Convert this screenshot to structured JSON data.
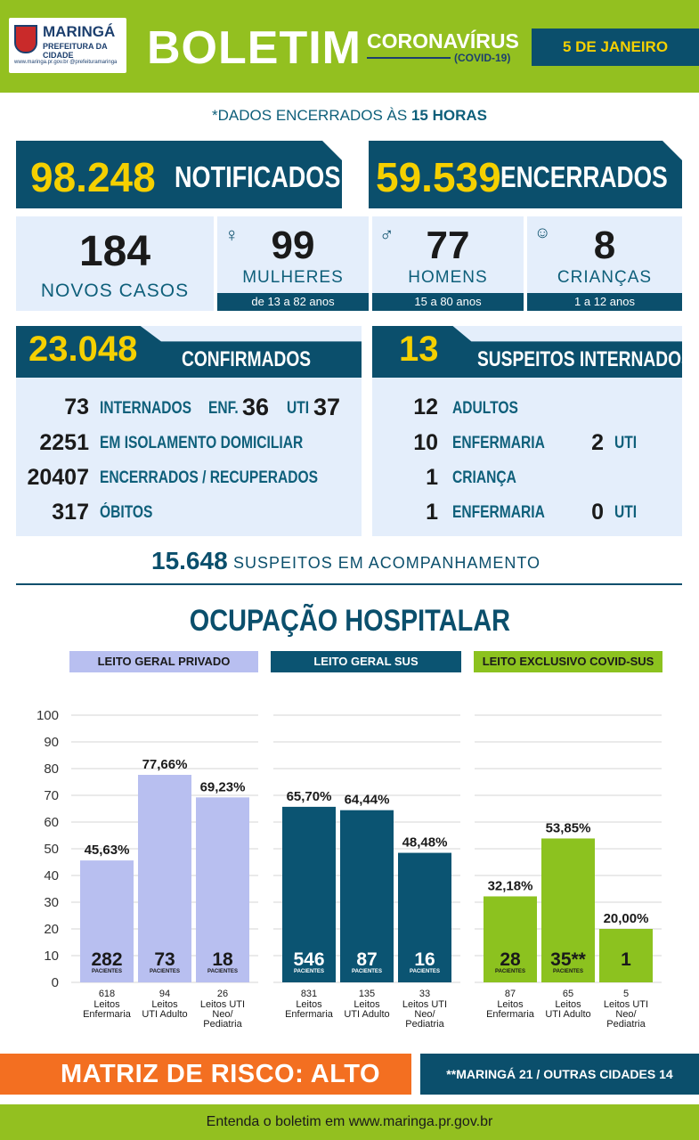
{
  "header": {
    "logo_name": "MARINGÁ",
    "logo_sub": "PREFEITURA DA CIDADE",
    "logo_url": "www.maringa.pr.gov.br  @prefeituramaringa",
    "title": "BOLETIM",
    "subtitle": "CORONAVÍRUS",
    "subtitle_tag": "(COVID-19)",
    "date": "5 DE JANEIRO"
  },
  "dados_encerrados": {
    "prefix": "*DADOS ENCERRADOS ÀS",
    "hour": "15 HORAS"
  },
  "totals": {
    "notificados_value": "98.248",
    "notificados_label": "NOTIFICADOS",
    "encerrados_value": "59.539",
    "encerrados_label": "ENCERRADOS"
  },
  "new_cases": {
    "total_value": "184",
    "total_label": "NOVOS CASOS",
    "women_value": "99",
    "women_label": "MULHERES",
    "women_age": "de 13 a 82 anos",
    "men_value": "77",
    "men_label": "HOMENS",
    "men_age": "15 a 80 anos",
    "children_value": "8",
    "children_label": "CRIANÇAS",
    "children_age": "1 a 12 anos"
  },
  "confirmed": {
    "value": "23.048",
    "label": "CONFIRMADOS",
    "internados_value": "73",
    "internados_label": "INTERNADOS",
    "enf_label": "ENF.",
    "enf_value": "36",
    "uti_label": "UTI",
    "uti_value": "37",
    "isolamento_value": "2251",
    "isolamento_label": "EM ISOLAMENTO DOMICILIAR",
    "recuperados_value": "20407",
    "recuperados_label": "ENCERRADOS / RECUPERADOS",
    "obitos_value": "317",
    "obitos_label": "ÓBITOS"
  },
  "suspects": {
    "value": "13",
    "label": "SUSPEITOS INTERNADOS",
    "adultos_value": "12",
    "adultos_label": "ADULTOS",
    "adult_enf_value": "10",
    "adult_enf_label": "ENFERMARIA",
    "adult_uti_value": "2",
    "adult_uti_label": "UTI",
    "crianca_value": "1",
    "crianca_label": "CRIANÇA",
    "child_enf_value": "1",
    "child_enf_label": "ENFERMARIA",
    "child_uti_value": "0",
    "child_uti_label": "UTI"
  },
  "acompanhamento": {
    "value": "15.648",
    "label": "SUSPEITOS EM ACOMPANHAMENTO"
  },
  "ocupacao": {
    "title": "OCUPAÇÃO HOSPITALAR",
    "groups": [
      "LEITO GERAL PRIVADO",
      "LEITO GERAL SUS",
      "LEITO EXCLUSIVO COVID-SUS"
    ],
    "pacientes_label": "PACIENTES"
  },
  "chart_data": {
    "type": "bar",
    "title": "OCUPAÇÃO HOSPITALAR",
    "ylim": [
      0,
      100
    ],
    "yticks": [
      0,
      10,
      20,
      30,
      40,
      50,
      60,
      70,
      80,
      90,
      100
    ],
    "grid": true,
    "groups": [
      {
        "name": "LEITO GERAL PRIVADO",
        "color": "#b8bff0",
        "text_color": "#1a1a1a",
        "bars": [
          {
            "value": 45.63,
            "pct_label": "45,63%",
            "patients": "282",
            "beds": "618",
            "category": [
              "Leitos",
              "Enfermaria"
            ]
          },
          {
            "value": 77.66,
            "pct_label": "77,66%",
            "patients": "73",
            "beds": "94",
            "category": [
              "Leitos",
              "UTI Adulto"
            ]
          },
          {
            "value": 69.23,
            "pct_label": "69,23%",
            "patients": "18",
            "beds": "26",
            "category": [
              "Leitos UTI",
              "Neo/",
              "Pediatria"
            ]
          }
        ]
      },
      {
        "name": "LEITO GERAL SUS",
        "color": "#0b5472",
        "text_color": "#ffffff",
        "bars": [
          {
            "value": 65.7,
            "pct_label": "65,70%",
            "patients": "546",
            "beds": "831",
            "category": [
              "Leitos",
              "Enfermaria"
            ]
          },
          {
            "value": 64.44,
            "pct_label": "64,44%",
            "patients": "87",
            "beds": "135",
            "category": [
              "Leitos",
              "UTI Adulto"
            ]
          },
          {
            "value": 48.48,
            "pct_label": "48,48%",
            "patients": "16",
            "beds": "33",
            "category": [
              "Leitos UTI",
              "Neo/",
              "Pediatria"
            ]
          }
        ]
      },
      {
        "name": "LEITO EXCLUSIVO COVID-SUS",
        "color": "#8cc21f",
        "text_color": "#1a1a1a",
        "bars": [
          {
            "value": 32.18,
            "pct_label": "32,18%",
            "patients": "28",
            "beds": "87",
            "category": [
              "Leitos",
              "Enfermaria"
            ]
          },
          {
            "value": 53.85,
            "pct_label": "53,85%",
            "patients": "35**",
            "beds": "65",
            "category": [
              "Leitos",
              "UTI Adulto"
            ]
          },
          {
            "value": 20.0,
            "pct_label": "20,00%",
            "patients": "1",
            "beds": "5",
            "category": [
              "Leitos UTI",
              "Neo/",
              "Pediatria"
            ]
          }
        ]
      }
    ]
  },
  "footer": {
    "risco": "MATRIZ DE RISCO: ALTO",
    "origem": "**MARINGÁ 21 / OUTRAS CIDADES 14",
    "site_text": "Entenda o boletim em www.maringa.pr.gov.br"
  }
}
